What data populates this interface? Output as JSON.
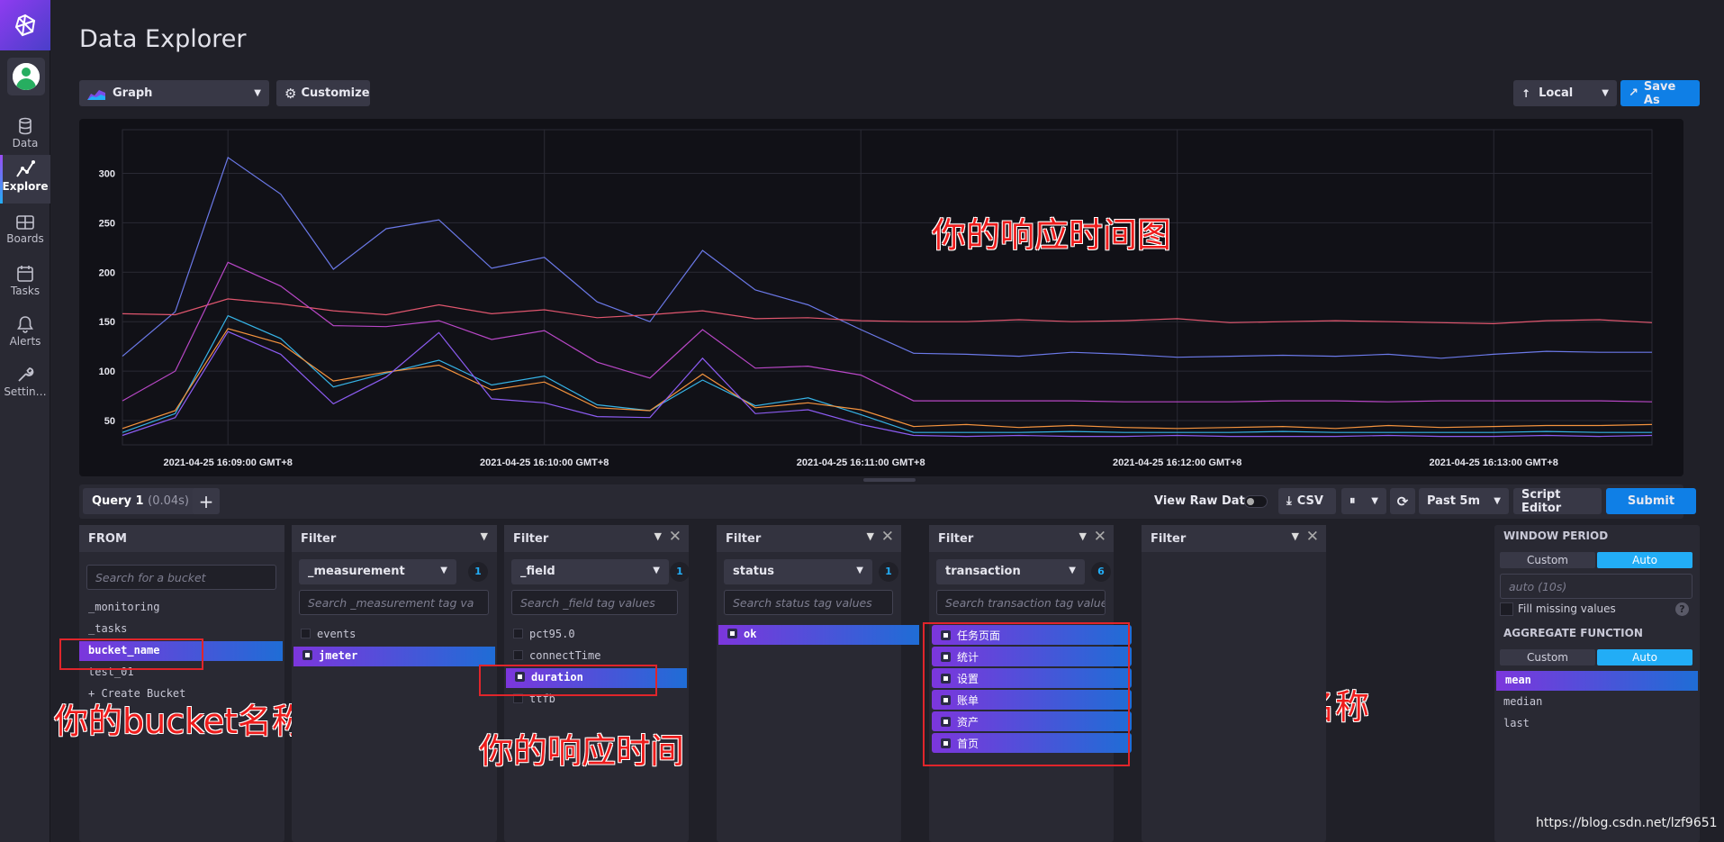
{
  "nav": {
    "items": [
      {
        "label": "Data",
        "icon": "database-icon"
      },
      {
        "label": "Explore",
        "icon": "graph-icon",
        "active": true
      },
      {
        "label": "Boards",
        "icon": "dashboard-icon"
      },
      {
        "label": "Tasks",
        "icon": "calendar-icon"
      },
      {
        "label": "Alerts",
        "icon": "bell-icon"
      },
      {
        "label": "Settin…",
        "icon": "wrench-icon"
      }
    ]
  },
  "page": {
    "title": "Data Explorer"
  },
  "toolbar": {
    "view_type": "Graph",
    "customize_label": "Customize",
    "timezone": "Local",
    "save_as_label": "Save As"
  },
  "chart_data": {
    "type": "line",
    "x": [
      "16:08:40",
      "16:08:50",
      "16:09:00",
      "16:09:10",
      "16:09:20",
      "16:09:30",
      "16:09:40",
      "16:09:50",
      "16:10:00",
      "16:10:10",
      "16:10:20",
      "16:10:30",
      "16:10:40",
      "16:10:50",
      "16:11:00",
      "16:11:10",
      "16:11:20",
      "16:11:30",
      "16:11:40",
      "16:11:50",
      "16:12:00",
      "16:12:10",
      "16:12:20",
      "16:12:30",
      "16:12:40",
      "16:12:50",
      "16:13:00",
      "16:13:10",
      "16:13:20",
      "16:13:30"
    ],
    "x_tick_labels": [
      "2021-04-25 16:09:00 GMT+8",
      "2021-04-25 16:10:00 GMT+8",
      "2021-04-25 16:11:00 GMT+8",
      "2021-04-25 16:12:00 GMT+8",
      "2021-04-25 16:13:00 GMT+8"
    ],
    "y_ticks": [
      50,
      100,
      150,
      200,
      250,
      300
    ],
    "ylim": [
      30,
      335
    ],
    "grid": true,
    "series": [
      {
        "color": "#6b79e8",
        "values": [
          115,
          160,
          316,
          279,
          203,
          244,
          253,
          204,
          215,
          170,
          150,
          222,
          182,
          167,
          142,
          118,
          117,
          115,
          119,
          117,
          114,
          115,
          116,
          115,
          117,
          113,
          117,
          120,
          119,
          119
        ]
      },
      {
        "color": "#e0566e",
        "values": [
          158,
          157,
          173,
          168,
          161,
          157,
          167,
          158,
          162,
          154,
          157,
          161,
          153,
          154,
          151,
          150,
          150,
          152,
          150,
          151,
          153,
          149,
          150,
          151,
          150,
          149,
          148,
          151,
          152,
          149
        ]
      },
      {
        "color": "#b847c6",
        "values": [
          70,
          100,
          210,
          186,
          146,
          145,
          151,
          132,
          141,
          109,
          93,
          142,
          103,
          105,
          96,
          70,
          70,
          70,
          70,
          69,
          69,
          69,
          70,
          70,
          69,
          70,
          70,
          70,
          70,
          69
        ]
      },
      {
        "color": "#36b3e6",
        "values": [
          38,
          57,
          156,
          133,
          84,
          98,
          111,
          86,
          95,
          66,
          60,
          91,
          65,
          73,
          56,
          38,
          38,
          38,
          39,
          38,
          38,
          38,
          39,
          38,
          38,
          38,
          38,
          39,
          38,
          38
        ]
      },
      {
        "color": "#f4933e",
        "values": [
          42,
          60,
          143,
          128,
          90,
          99,
          106,
          81,
          89,
          63,
          60,
          97,
          63,
          68,
          61,
          44,
          46,
          43,
          45,
          43,
          42,
          43,
          44,
          42,
          45,
          43,
          44,
          45,
          45,
          46
        ]
      },
      {
        "color": "#8c5cf2",
        "values": [
          35,
          53,
          140,
          117,
          67,
          94,
          139,
          72,
          68,
          54,
          53,
          113,
          57,
          61,
          46,
          35,
          34,
          35,
          34,
          34,
          35,
          34,
          34,
          34,
          35,
          34,
          34,
          35,
          34,
          35
        ]
      }
    ]
  },
  "annotations": {
    "chart": "你的响应时间图",
    "bucket": "你的bucket名称",
    "field": "你的响应时间",
    "transaction": "你的接口名称"
  },
  "query_bar": {
    "tab_label": "Query 1",
    "tab_time": "(0.04s)",
    "add_label": "+",
    "view_raw_label": "View Raw Data",
    "csv_label": "CSV",
    "pause_label": "⏸",
    "range_label": "Past 5m",
    "script_editor_label": "Script Editor",
    "submit_label": "Submit"
  },
  "from": {
    "heading": "FROM",
    "search_placeholder": "Search for a bucket",
    "buckets": [
      "_monitoring",
      "_tasks",
      "bucket_name",
      "test_01",
      "+ Create Bucket"
    ],
    "selected": "bucket_name"
  },
  "filters": [
    {
      "heading": "Filter",
      "key": "_measurement",
      "count": "1",
      "placeholder": "Search _measurement tag va",
      "values": [
        "events",
        "jmeter"
      ],
      "selected": [
        "jmeter"
      ]
    },
    {
      "heading": "Filter",
      "key": "_field",
      "count": "1",
      "placeholder": "Search _field tag values",
      "values": [
        "pct95.0",
        "connectTime",
        "duration",
        "ttfb"
      ],
      "selected": [
        "duration"
      ]
    },
    {
      "heading": "Filter",
      "key": "status",
      "count": "1",
      "placeholder": "Search status tag values",
      "values": [
        "ok"
      ],
      "selected": [
        "ok"
      ]
    },
    {
      "heading": "Filter",
      "key": "transaction",
      "count": "6",
      "placeholder": "Search transaction tag values",
      "values": [
        "任务页面",
        "统计",
        "设置",
        "账单",
        "资产",
        "首页"
      ],
      "selected": [
        "任务页面",
        "统计",
        "设置",
        "账单",
        "资产",
        "首页"
      ]
    },
    {
      "heading": "Filter"
    }
  ],
  "window": {
    "heading": "WINDOW PERIOD",
    "custom_label": "Custom",
    "auto_label": "Auto",
    "period_value": "auto (10s)",
    "fill_missing_label": "Fill missing values",
    "help_label": "?",
    "agg_heading": "AGGREGATE FUNCTION",
    "functions": [
      "mean",
      "median",
      "last"
    ],
    "selected_function": "mean"
  },
  "watermark": "https://blog.csdn.net/lzf9651"
}
